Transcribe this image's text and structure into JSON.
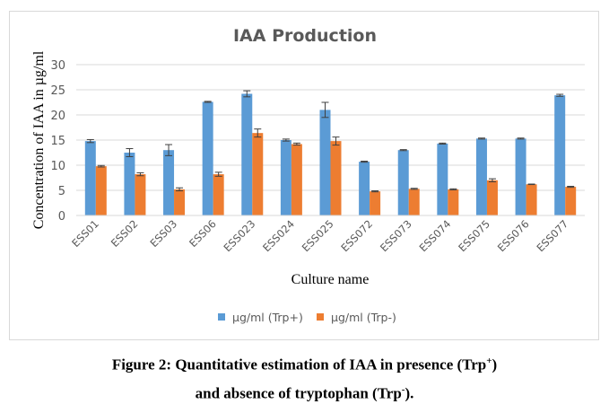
{
  "chart_data": {
    "type": "bar",
    "title": "IAA Production",
    "xlabel": "Culture name",
    "ylabel": "Concentration of IAA in µg/ml",
    "ylim": [
      0,
      30
    ],
    "yticks": [
      0,
      5,
      10,
      15,
      20,
      25,
      30
    ],
    "grid": true,
    "legend_position": "bottom",
    "categories": [
      "ESS01",
      "ESS02",
      "ESS03",
      "ESS06",
      "ESS023",
      "ESS024",
      "ESS025",
      "ESS072",
      "ESS073",
      "ESS074",
      "ESS075",
      "ESS076",
      "ESS077"
    ],
    "series": [
      {
        "name": "µg/ml (Trp+)",
        "color": "#5b9bd5",
        "values": [
          14.8,
          12.5,
          13.0,
          22.6,
          24.2,
          15.0,
          21.0,
          10.7,
          13.0,
          14.3,
          15.3,
          15.3,
          23.9
        ],
        "errors": [
          0.3,
          0.8,
          1.1,
          0.1,
          0.6,
          0.2,
          1.5,
          0.1,
          0.1,
          0.1,
          0.1,
          0.1,
          0.2
        ]
      },
      {
        "name": "µg/ml (Trp-)",
        "color": "#ed7d31",
        "values": [
          9.8,
          8.2,
          5.2,
          8.2,
          16.4,
          14.2,
          14.8,
          4.8,
          5.3,
          5.2,
          7.0,
          6.2,
          5.7
        ],
        "errors": [
          0.15,
          0.3,
          0.3,
          0.4,
          0.8,
          0.2,
          0.8,
          0.1,
          0.1,
          0.1,
          0.3,
          0.05,
          0.1
        ]
      }
    ]
  },
  "caption": {
    "line1_main": "Figure 2: Quantitative estimation of IAA in presence (Trp",
    "line1_sup": "+",
    "line1_end": ")",
    "line2_main": "and absence of tryptophan (Trp",
    "line2_sup": "-",
    "line2_end": ")."
  }
}
